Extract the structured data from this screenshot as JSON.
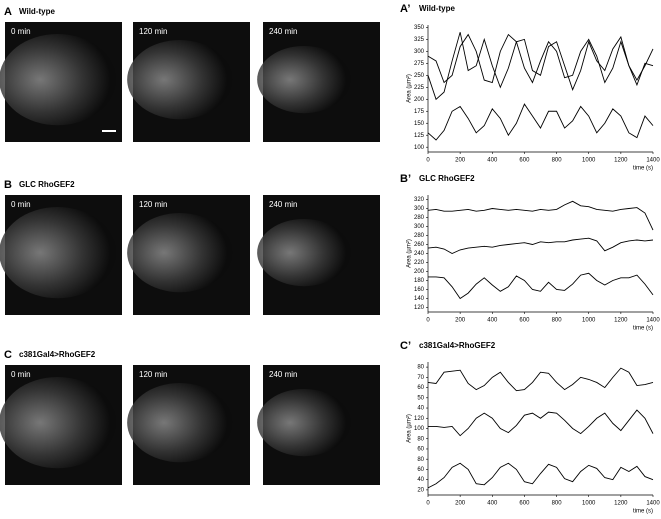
{
  "panels": [
    {
      "letter": "A",
      "title": "Wild-type",
      "frames": [
        "0 min",
        "120 min",
        "240 min"
      ]
    },
    {
      "letter": "B",
      "title": "GLC RhoGEF2",
      "frames": [
        "0 min",
        "120 min",
        "240 min"
      ]
    },
    {
      "letter": "C",
      "title": "c381Gal4>RhoGEF2",
      "frames": [
        "0 min",
        "120 min",
        "240 min"
      ]
    }
  ],
  "chart_data": [
    {
      "type": "line",
      "panel_label": "A’",
      "title": "Wild-type",
      "xlabel": "time (s)",
      "ylabel": "Area (µm²)",
      "x": [
        0,
        50,
        100,
        150,
        200,
        250,
        300,
        350,
        400,
        450,
        500,
        550,
        600,
        650,
        700,
        750,
        800,
        850,
        900,
        950,
        1000,
        1050,
        1100,
        1150,
        1200,
        1250,
        1300,
        1350,
        1400
      ],
      "xlim": [
        0,
        1400
      ],
      "xticks": [
        0,
        200,
        400,
        600,
        800,
        1000,
        1200,
        1400
      ],
      "ylim": [
        90,
        355
      ],
      "yticks": [
        100,
        125,
        150,
        175,
        200,
        225,
        250,
        275,
        300,
        325,
        350
      ],
      "series": [
        {
          "color": "#000000",
          "values": [
            290,
            280,
            235,
            250,
            310,
            335,
            300,
            240,
            235,
            300,
            335,
            320,
            265,
            235,
            280,
            320,
            300,
            245,
            250,
            300,
            325,
            290,
            235,
            265,
            320,
            270,
            230,
            275,
            270
          ]
        },
        {
          "color": "#000000",
          "values": [
            250,
            200,
            215,
            280,
            340,
            260,
            270,
            325,
            270,
            225,
            265,
            320,
            325,
            260,
            250,
            310,
            320,
            270,
            220,
            260,
            320,
            280,
            260,
            305,
            330,
            270,
            240,
            270,
            305
          ]
        },
        {
          "color": "#000000",
          "values": [
            130,
            115,
            135,
            175,
            185,
            160,
            130,
            145,
            180,
            160,
            125,
            150,
            190,
            165,
            140,
            175,
            175,
            140,
            155,
            185,
            165,
            130,
            150,
            180,
            165,
            130,
            120,
            165,
            145
          ]
        }
      ]
    },
    {
      "type": "line",
      "panel_label": "B’",
      "title": "GLC RhoGEF2",
      "xlabel": "time (s)",
      "ylabel": "Area (µm²)",
      "x": [
        0,
        50,
        100,
        150,
        200,
        250,
        300,
        350,
        400,
        450,
        500,
        550,
        600,
        650,
        700,
        750,
        800,
        850,
        900,
        950,
        1000,
        1050,
        1100,
        1150,
        1200,
        1250,
        1300,
        1350,
        1400
      ],
      "xlim": [
        0,
        1400
      ],
      "xticks": [
        0,
        200,
        400,
        600,
        800,
        1000,
        1200,
        1400
      ],
      "ylim": [
        -0.5,
        12.5
      ],
      "yticks": [
        {
          "value": 12,
          "label": "320"
        },
        {
          "value": 11,
          "label": "300"
        },
        {
          "value": 10,
          "label": "280"
        },
        {
          "value": 9,
          "label": "300"
        },
        {
          "value": 8,
          "label": "280"
        },
        {
          "value": 7,
          "label": "260"
        },
        {
          "value": 6,
          "label": "240"
        },
        {
          "value": 5,
          "label": "220"
        },
        {
          "value": 4,
          "label": "200"
        },
        {
          "value": 3,
          "label": "180"
        },
        {
          "value": 2,
          "label": "160"
        },
        {
          "value": 1,
          "label": "140"
        },
        {
          "value": 0,
          "label": "120"
        }
      ],
      "series": [
        {
          "color": "#000000",
          "values": [
            10.8,
            10.9,
            10.7,
            10.7,
            10.8,
            10.9,
            10.7,
            10.8,
            11.0,
            10.9,
            10.8,
            10.9,
            10.8,
            10.7,
            10.9,
            10.8,
            10.9,
            11.4,
            11.8,
            11.3,
            11.2,
            10.9,
            10.8,
            10.7,
            10.9,
            11.0,
            11.1,
            10.5,
            8.6
          ]
        },
        {
          "color": "#000000",
          "values": [
            6.6,
            6.7,
            6.5,
            6.0,
            6.4,
            6.6,
            6.7,
            6.8,
            6.7,
            6.9,
            7.0,
            7.1,
            7.2,
            7.0,
            7.3,
            7.2,
            7.3,
            7.3,
            7.5,
            7.6,
            7.7,
            7.4,
            6.3,
            6.7,
            7.2,
            7.4,
            7.5,
            7.4,
            7.5
          ]
        },
        {
          "color": "#000000",
          "values": [
            3.4,
            3.4,
            3.3,
            2.3,
            1.0,
            1.6,
            2.6,
            3.3,
            2.5,
            1.8,
            2.3,
            3.5,
            3.0,
            2.0,
            1.8,
            2.8,
            2.0,
            1.9,
            2.6,
            3.6,
            3.8,
            3.0,
            2.5,
            3.0,
            3.3,
            3.3,
            3.6,
            2.6,
            1.4
          ]
        }
      ]
    },
    {
      "type": "line",
      "panel_label": "C’",
      "title": "c381Gal4>RhoGEF2",
      "xlabel": "time (s)",
      "ylabel": "Area (µm²)",
      "x": [
        0,
        50,
        100,
        150,
        200,
        250,
        300,
        350,
        400,
        450,
        500,
        550,
        600,
        650,
        700,
        750,
        800,
        850,
        900,
        950,
        1000,
        1050,
        1100,
        1150,
        1200,
        1250,
        1300,
        1350,
        1400
      ],
      "xlim": [
        0,
        1400
      ],
      "xticks": [
        0,
        200,
        400,
        600,
        800,
        1000,
        1200,
        1400
      ],
      "ylim": [
        -0.5,
        12.5
      ],
      "yticks": [
        {
          "value": 12,
          "label": "80"
        },
        {
          "value": 11,
          "label": "70"
        },
        {
          "value": 10,
          "label": "60"
        },
        {
          "value": 9,
          "label": "50"
        },
        {
          "value": 8,
          "label": "40"
        },
        {
          "value": 7,
          "label": "120"
        },
        {
          "value": 6,
          "label": "100"
        },
        {
          "value": 5,
          "label": "80"
        },
        {
          "value": 4,
          "label": "60"
        },
        {
          "value": 3,
          "label": "80"
        },
        {
          "value": 2,
          "label": "60"
        },
        {
          "value": 1,
          "label": "40"
        },
        {
          "value": 0,
          "label": "20"
        }
      ],
      "series": [
        {
          "color": "#000000",
          "values": [
            10.5,
            10.4,
            11.5,
            11.6,
            11.7,
            10.4,
            9.8,
            10.2,
            11.0,
            11.5,
            10.5,
            9.7,
            9.8,
            10.5,
            11.5,
            11.4,
            10.5,
            9.8,
            10.3,
            11.0,
            10.8,
            10.5,
            10.0,
            11.0,
            11.9,
            11.5,
            10.2,
            10.3,
            10.5
          ]
        },
        {
          "color": "#000000",
          "values": [
            6.2,
            6.2,
            6.1,
            6.2,
            5.3,
            6.0,
            7.0,
            7.5,
            7.0,
            6.0,
            5.6,
            6.3,
            7.3,
            7.5,
            7.0,
            7.6,
            7.5,
            6.8,
            6.0,
            5.5,
            6.2,
            7.0,
            7.5,
            6.5,
            5.8,
            6.8,
            7.8,
            7.0,
            5.5
          ]
        },
        {
          "color": "#000000",
          "values": [
            0.2,
            0.6,
            1.2,
            2.2,
            2.6,
            2.0,
            0.6,
            0.5,
            1.2,
            2.2,
            2.6,
            2.0,
            0.8,
            0.6,
            1.6,
            2.5,
            2.2,
            1.1,
            0.8,
            1.8,
            2.4,
            2.1,
            1.2,
            1.0,
            2.2,
            1.8,
            2.3,
            1.3,
            1.0
          ]
        }
      ]
    }
  ]
}
